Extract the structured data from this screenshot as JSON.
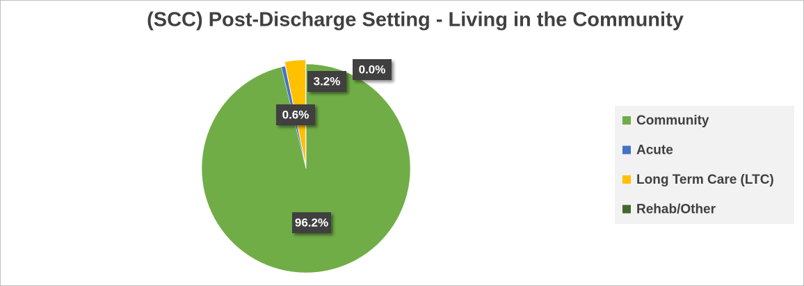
{
  "chart_data": {
    "type": "pie",
    "title": "(SCC) Post-Discharge Setting - Living in the Community",
    "categories": [
      "Community",
      "Acute",
      "Long Term Care (LTC)",
      "Rehab/Other"
    ],
    "values": [
      96.2,
      0.6,
      3.2,
      0.0
    ],
    "value_labels": [
      "96.2%",
      "0.6%",
      "3.2%",
      "0.0%"
    ],
    "colors": [
      "#70ad47",
      "#4472c4",
      "#ffc000",
      "#43682b"
    ],
    "legend": "right"
  }
}
